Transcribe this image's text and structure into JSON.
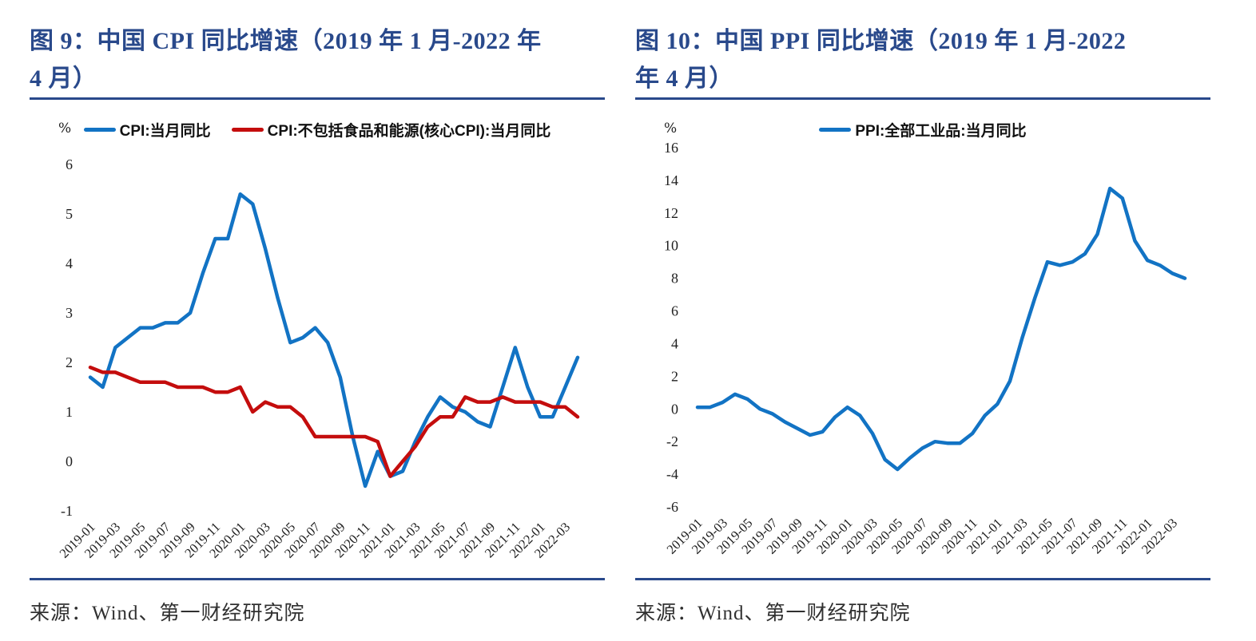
{
  "colors": {
    "accent_navy": "#29498B",
    "cpi_blue": "#1273C4",
    "core_cpi_red": "#C40D0D",
    "ppi_blue": "#1273C4",
    "tick_text": "#1f1f1f"
  },
  "figures": [
    {
      "title_line1": "图 9：中国 CPI 同比增速（2019 年 1 月-2022 年",
      "title_line2": "4 月）",
      "source": "来源：Wind、第一财经研究院"
    },
    {
      "title_line1": "图 10：中国 PPI 同比增速（2019 年 1 月-2022",
      "title_line2": "年 4 月）",
      "source": "来源：Wind、第一财经研究院"
    }
  ],
  "chart_data": [
    {
      "type": "line",
      "title": "中国CPI同比增速（2019年1月-2022年4月）",
      "unit": "%",
      "xlabel": "",
      "ylabel": "%",
      "grid": false,
      "legend_position": "top",
      "ylim": [
        -1,
        6
      ],
      "yticks": [
        6,
        5,
        4,
        3,
        2,
        1,
        0,
        -1
      ],
      "x": [
        "2019-01",
        "2019-02",
        "2019-03",
        "2019-04",
        "2019-05",
        "2019-06",
        "2019-07",
        "2019-08",
        "2019-09",
        "2019-10",
        "2019-11",
        "2019-12",
        "2020-01",
        "2020-02",
        "2020-03",
        "2020-04",
        "2020-05",
        "2020-06",
        "2020-07",
        "2020-08",
        "2020-09",
        "2020-10",
        "2020-11",
        "2020-12",
        "2021-01",
        "2021-02",
        "2021-03",
        "2021-04",
        "2021-05",
        "2021-06",
        "2021-07",
        "2021-08",
        "2021-09",
        "2021-10",
        "2021-11",
        "2021-12",
        "2022-01",
        "2022-02",
        "2022-03",
        "2022-04"
      ],
      "xticks_shown": [
        "2019-01",
        "2019-03",
        "2019-05",
        "2019-07",
        "2019-09",
        "2019-11",
        "2020-01",
        "2020-03",
        "2020-05",
        "2020-07",
        "2020-09",
        "2020-11",
        "2021-01",
        "2021-03",
        "2021-05",
        "2021-07",
        "2021-09",
        "2021-11",
        "2022-01",
        "2022-03"
      ],
      "series": [
        {
          "name": "CPI:当月同比",
          "color": "#1273C4",
          "values": [
            1.7,
            1.5,
            2.3,
            2.5,
            2.7,
            2.7,
            2.8,
            2.8,
            3.0,
            3.8,
            4.5,
            4.5,
            5.4,
            5.2,
            4.3,
            3.3,
            2.4,
            2.5,
            2.7,
            2.4,
            1.7,
            0.5,
            -0.5,
            0.2,
            -0.3,
            -0.2,
            0.4,
            0.9,
            1.3,
            1.1,
            1.0,
            0.8,
            0.7,
            1.5,
            2.3,
            1.5,
            0.9,
            0.9,
            1.5,
            2.1
          ]
        },
        {
          "name": "CPI:不包括食品和能源(核心CPI):当月同比",
          "color": "#C40D0D",
          "values": [
            1.9,
            1.8,
            1.8,
            1.7,
            1.6,
            1.6,
            1.6,
            1.5,
            1.5,
            1.5,
            1.4,
            1.4,
            1.5,
            1.0,
            1.2,
            1.1,
            1.1,
            0.9,
            0.5,
            0.5,
            0.5,
            0.5,
            0.5,
            0.4,
            -0.3,
            0.0,
            0.3,
            0.7,
            0.9,
            0.9,
            1.3,
            1.2,
            1.2,
            1.3,
            1.2,
            1.2,
            1.2,
            1.1,
            1.1,
            0.9
          ]
        }
      ]
    },
    {
      "type": "line",
      "title": "中国PPI同比增速（2019年1月-2022年4月）",
      "unit": "%",
      "xlabel": "",
      "ylabel": "%",
      "grid": false,
      "legend_position": "top",
      "ylim": [
        -6,
        16
      ],
      "yticks": [
        16,
        14,
        12,
        10,
        8,
        6,
        4,
        2,
        0,
        -2,
        -4,
        -6
      ],
      "x": [
        "2019-01",
        "2019-02",
        "2019-03",
        "2019-04",
        "2019-05",
        "2019-06",
        "2019-07",
        "2019-08",
        "2019-09",
        "2019-10",
        "2019-11",
        "2019-12",
        "2020-01",
        "2020-02",
        "2020-03",
        "2020-04",
        "2020-05",
        "2020-06",
        "2020-07",
        "2020-08",
        "2020-09",
        "2020-10",
        "2020-11",
        "2020-12",
        "2021-01",
        "2021-02",
        "2021-03",
        "2021-04",
        "2021-05",
        "2021-06",
        "2021-07",
        "2021-08",
        "2021-09",
        "2021-10",
        "2021-11",
        "2021-12",
        "2022-01",
        "2022-02",
        "2022-03",
        "2022-04"
      ],
      "xticks_shown": [
        "2019-01",
        "2019-03",
        "2019-05",
        "2019-07",
        "2019-09",
        "2019-11",
        "2020-01",
        "2020-03",
        "2020-05",
        "2020-07",
        "2020-09",
        "2020-11",
        "2021-01",
        "2021-03",
        "2021-05",
        "2021-07",
        "2021-09",
        "2021-11",
        "2022-01",
        "2022-03"
      ],
      "series": [
        {
          "name": "PPI:全部工业品:当月同比",
          "color": "#1273C4",
          "values": [
            0.1,
            0.1,
            0.4,
            0.9,
            0.6,
            0.0,
            -0.3,
            -0.8,
            -1.2,
            -1.6,
            -1.4,
            -0.5,
            0.1,
            -0.4,
            -1.5,
            -3.1,
            -3.7,
            -3.0,
            -2.4,
            -2.0,
            -2.1,
            -2.1,
            -1.5,
            -0.4,
            0.3,
            1.7,
            4.4,
            6.8,
            9.0,
            8.8,
            9.0,
            9.5,
            10.7,
            13.5,
            12.9,
            10.3,
            9.1,
            8.8,
            8.3,
            8.0
          ]
        }
      ]
    }
  ]
}
